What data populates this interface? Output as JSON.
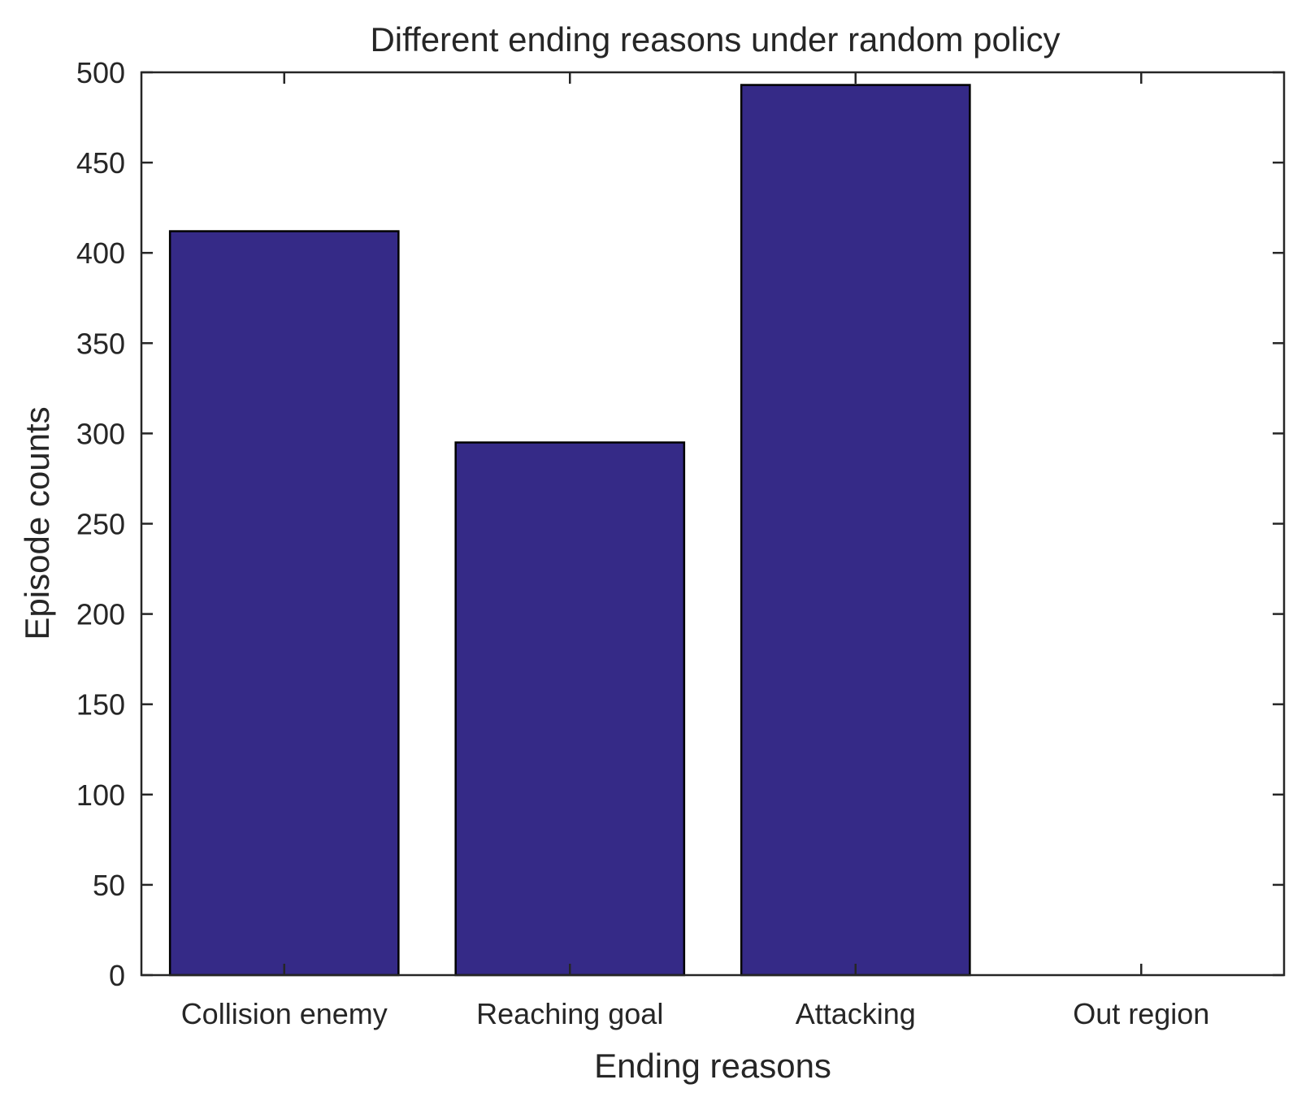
{
  "chart_data": {
    "type": "bar",
    "title": "Different ending reasons under random policy",
    "xlabel": "Ending reasons",
    "ylabel": "Episode counts",
    "categories": [
      "Collision enemy",
      "Reaching goal",
      "Attacking",
      "Out region"
    ],
    "values": [
      412,
      295,
      493,
      0
    ],
    "ylim": [
      0,
      500
    ],
    "yticks": [
      0,
      50,
      100,
      150,
      200,
      250,
      300,
      350,
      400,
      450,
      500
    ],
    "grid": false,
    "legend": "none",
    "bar_color": "#352a87",
    "edge_color": "#000000"
  }
}
